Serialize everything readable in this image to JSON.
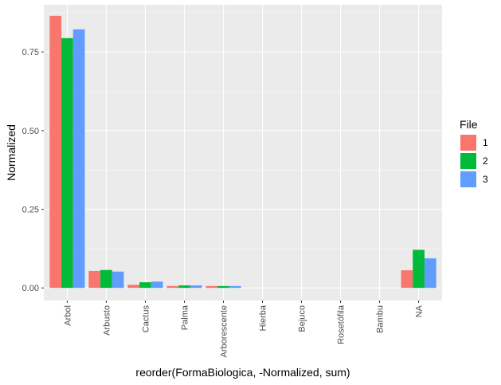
{
  "chart_data": {
    "type": "bar",
    "xlabel": "reorder(FormaBiologica, -Normalized, sum)",
    "ylabel": "Normalized",
    "categories": [
      "Arbol",
      "Arbusto",
      "Cactus",
      "Palma",
      "Arborescente",
      "Hierba",
      "Bejuco",
      "Rosetófila",
      "Bambu",
      "NA"
    ],
    "series": [
      {
        "name": "1",
        "color": "#F8766D",
        "values": [
          0.865,
          0.054,
          0.01,
          0.006,
          0.006,
          0,
          0,
          0,
          0,
          0.056
        ]
      },
      {
        "name": "2",
        "color": "#00BA38",
        "values": [
          0.794,
          0.057,
          0.018,
          0.008,
          0.006,
          0,
          0,
          0,
          0,
          0.121
        ]
      },
      {
        "name": "3",
        "color": "#619CFF",
        "values": [
          0.822,
          0.052,
          0.02,
          0.008,
          0.006,
          0,
          0,
          0,
          0,
          0.094
        ]
      }
    ],
    "yticks": [
      0.0,
      0.25,
      0.5,
      0.75
    ],
    "ytick_labels": [
      "0.00",
      "0.25",
      "0.50",
      "0.75"
    ],
    "ylim": [
      -0.04,
      0.9
    ],
    "legend_title": "File",
    "legend_position": "right",
    "grid": true,
    "panel_background": "#EBEBEB",
    "grid_color": "#FFFFFF"
  }
}
